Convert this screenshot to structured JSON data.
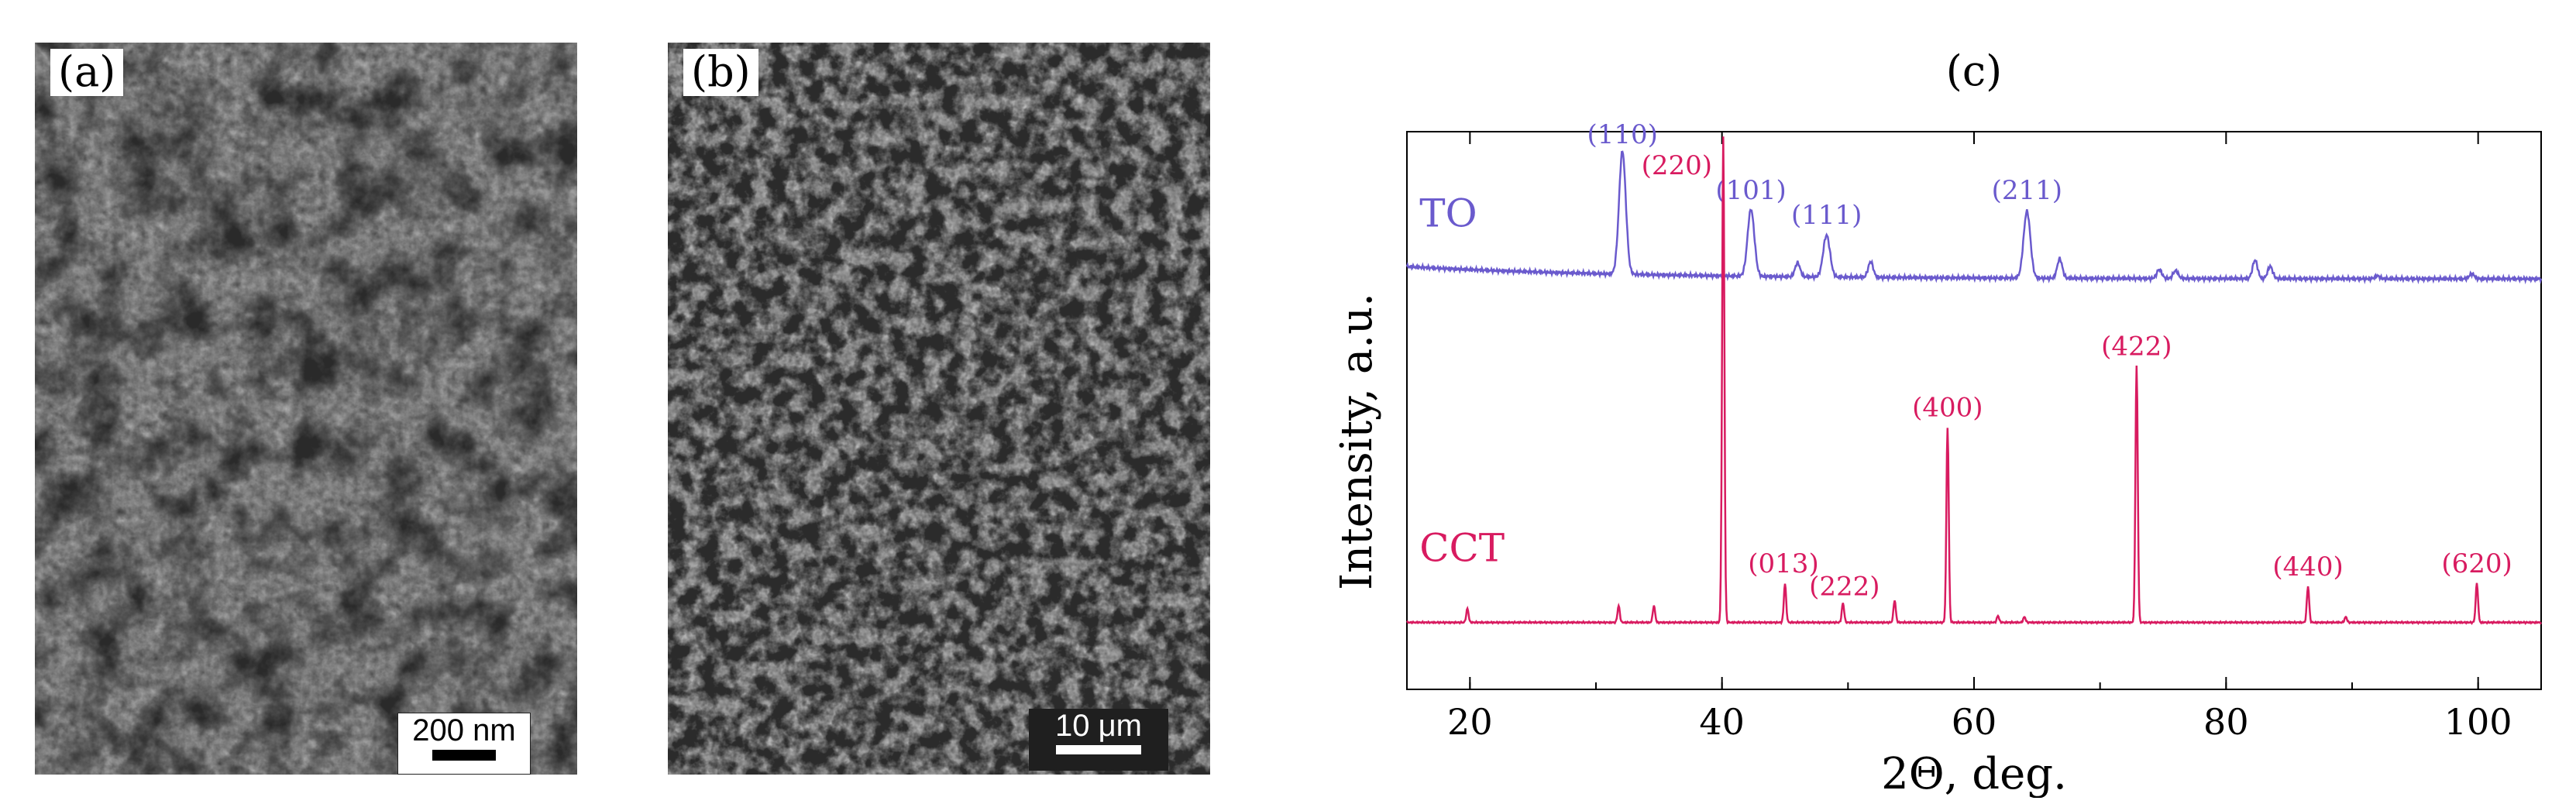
{
  "panels": {
    "a": {
      "label": "(a)",
      "scale_text": "200 nm"
    },
    "b": {
      "label": "(b)",
      "scale_text": "10 μm"
    },
    "c": {
      "label": "(c)"
    }
  },
  "chart_data": {
    "type": "line",
    "xlabel": "2Θ, deg.",
    "ylabel": "Intensity, a.u.",
    "xlim": [
      15,
      105
    ],
    "ylim": [
      0,
      100
    ],
    "xticks": [
      20,
      40,
      60,
      80,
      100
    ],
    "grid": false,
    "series": [
      {
        "name": "TO",
        "color": "#6a5acd",
        "baseline": 74,
        "peaks": [
          {
            "x": 32.1,
            "y": 96,
            "label": "(110)"
          },
          {
            "x": 42.3,
            "y": 86,
            "label": "(101)"
          },
          {
            "x": 46.0,
            "y": 76.5,
            "label": ""
          },
          {
            "x": 48.3,
            "y": 81.5,
            "label": "(111)"
          },
          {
            "x": 51.8,
            "y": 76.8,
            "label": ""
          },
          {
            "x": 64.2,
            "y": 86,
            "label": "(211)"
          },
          {
            "x": 66.8,
            "y": 77.5,
            "label": ""
          },
          {
            "x": 74.7,
            "y": 75.6,
            "label": ""
          },
          {
            "x": 76.0,
            "y": 75.4,
            "label": ""
          },
          {
            "x": 82.3,
            "y": 77.3,
            "label": ""
          },
          {
            "x": 83.5,
            "y": 76.2,
            "label": ""
          },
          {
            "x": 92.0,
            "y": 74.5,
            "label": ""
          },
          {
            "x": 99.5,
            "y": 74.9,
            "label": ""
          }
        ]
      },
      {
        "name": "CCT",
        "color": "#d81b60",
        "baseline": 12,
        "peaks": [
          {
            "x": 19.8,
            "y": 14.5,
            "label": ""
          },
          {
            "x": 31.8,
            "y": 15,
            "label": ""
          },
          {
            "x": 34.6,
            "y": 15,
            "label": ""
          },
          {
            "x": 40.1,
            "y": 99,
            "label": "(220)"
          },
          {
            "x": 45.0,
            "y": 19,
            "label": "(013)"
          },
          {
            "x": 49.6,
            "y": 15.5,
            "label": "(222)"
          },
          {
            "x": 53.7,
            "y": 16,
            "label": ""
          },
          {
            "x": 57.9,
            "y": 47,
            "label": "(400)"
          },
          {
            "x": 61.9,
            "y": 13.2,
            "label": ""
          },
          {
            "x": 64.0,
            "y": 13,
            "label": ""
          },
          {
            "x": 72.9,
            "y": 58,
            "label": "(422)"
          },
          {
            "x": 86.5,
            "y": 18.5,
            "label": "(440)"
          },
          {
            "x": 89.5,
            "y": 13,
            "label": ""
          },
          {
            "x": 99.9,
            "y": 19,
            "label": "(620)"
          }
        ]
      }
    ]
  }
}
